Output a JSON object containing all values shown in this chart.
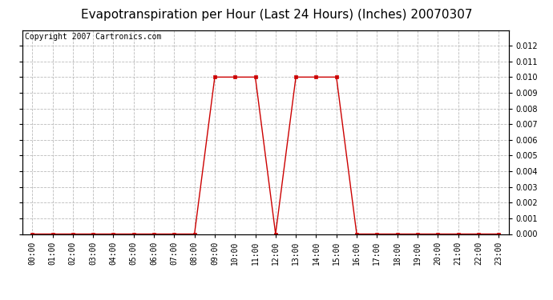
{
  "title": "Evapotranspiration per Hour (Last 24 Hours) (Inches) 20070307",
  "copyright_text": "Copyright 2007 Cartronics.com",
  "hours": [
    0,
    1,
    2,
    3,
    4,
    5,
    6,
    7,
    8,
    9,
    10,
    11,
    12,
    13,
    14,
    15,
    16,
    17,
    18,
    19,
    20,
    21,
    22,
    23
  ],
  "hour_labels": [
    "00:00",
    "01:00",
    "02:00",
    "03:00",
    "04:00",
    "05:00",
    "06:00",
    "07:00",
    "08:00",
    "09:00",
    "10:00",
    "11:00",
    "12:00",
    "13:00",
    "14:00",
    "15:00",
    "16:00",
    "17:00",
    "18:00",
    "19:00",
    "20:00",
    "21:00",
    "22:00",
    "23:00"
  ],
  "values": [
    0.0,
    0.0,
    0.0,
    0.0,
    0.0,
    0.0,
    0.0,
    0.0,
    0.0,
    0.01,
    0.01,
    0.01,
    0.0,
    0.01,
    0.01,
    0.01,
    0.0,
    0.0,
    0.0,
    0.0,
    0.0,
    0.0,
    0.0,
    0.0
  ],
  "line_color": "#cc0000",
  "marker": "s",
  "marker_size": 3,
  "ylim": [
    0,
    0.013
  ],
  "yticks": [
    0.0,
    0.001,
    0.002,
    0.003,
    0.004,
    0.005,
    0.006,
    0.007,
    0.008,
    0.009,
    0.01,
    0.011,
    0.012
  ],
  "bg_color": "#ffffff",
  "plot_bg_color": "#ffffff",
  "grid_color": "#bbbbbb",
  "title_fontsize": 11,
  "copyright_fontsize": 7,
  "tick_fontsize": 7,
  "right_axis": true
}
